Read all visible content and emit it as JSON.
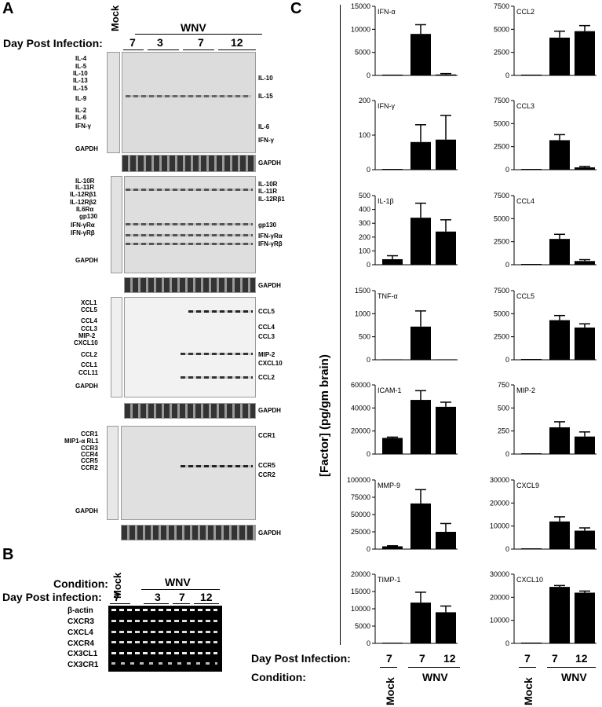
{
  "panels": {
    "a": "A",
    "b": "B",
    "c": "C"
  },
  "panel_a": {
    "mock_label": "Mock",
    "wnv_label": "WNV",
    "dpi_label": "Day Post Infection:",
    "days": [
      "7",
      "3",
      "7",
      "12"
    ],
    "blots": [
      {
        "left_labels": [
          "IL-4",
          "IL-5",
          "IL-10",
          "IL-13",
          "IL-15",
          "IL-9",
          "IL-2",
          "IL-6",
          "IFN-γ",
          "GAPDH"
        ],
        "right_labels": [
          "IL-10",
          "IL-15",
          "IL-6",
          "IFN-γ"
        ],
        "gapdh_label": "GAPDH"
      },
      {
        "left_labels": [
          "IL-10R",
          "IL-11R",
          "IL-12Rβ1",
          "IL-12Rβ2",
          "IL6Rα",
          "gp130",
          "IFN-γRα",
          "IFN-γRβ",
          "GAPDH"
        ],
        "right_labels": [
          "IL-10R",
          "IL-11R",
          "IL-12Rβ1",
          "gp130",
          "IFN-γRα",
          "IFN-γRβ"
        ],
        "gapdh_label": "GAPDH"
      },
      {
        "left_labels": [
          "XCL1",
          "CCL5",
          "CCL4",
          "CCL3",
          "MIP-2",
          "CXCL10",
          "CCL2",
          "CCL1",
          "CCL11",
          "GAPDH"
        ],
        "right_labels": [
          "CCL5",
          "CCL4",
          "CCL3",
          "MIP-2",
          "CXCL10",
          "CCL2"
        ],
        "gapdh_label": "GAPDH"
      },
      {
        "left_labels": [
          "CCR1",
          "MIP1-α RL1",
          "CCR3",
          "CCR4",
          "CCR5",
          "CCR2",
          "GAPDH"
        ],
        "right_labels": [
          "CCR1",
          "CCR5",
          "CCR2"
        ],
        "gapdh_label": "GAPDH"
      }
    ]
  },
  "panel_b": {
    "condition_label": "Condition:",
    "mock_label": "Mock",
    "wnv_label": "WNV",
    "dpi_label": "Day Post infection:",
    "days": [
      "7",
      "3",
      "7",
      "12"
    ],
    "rows": [
      "β-actin",
      "CXCR3",
      "CXCL4",
      "CXCR4",
      "CX3CL1",
      "CX3CR1"
    ]
  },
  "panel_c": {
    "ylabel": "[Factor] (pg/gm brain)",
    "dpi_label": "Day Post Infection:",
    "condition_label": "Condition:",
    "days": [
      "7",
      "7",
      "12"
    ],
    "mock_label": "Mock",
    "wnv_label": "WNV"
  },
  "chart_data": [
    {
      "type": "bar",
      "title": "IFN-α",
      "categories": [
        "Mock 7",
        "WNV 7",
        "WNV 12"
      ],
      "values": [
        0,
        9000,
        200
      ],
      "errors": [
        0,
        2000,
        200
      ],
      "ylim": [
        0,
        15000
      ],
      "yticks": [
        0,
        5000,
        10000,
        15000
      ]
    },
    {
      "type": "bar",
      "title": "IFN-γ",
      "categories": [
        "Mock 7",
        "WNV 7",
        "WNV 12"
      ],
      "values": [
        0,
        80,
        87
      ],
      "errors": [
        0,
        50,
        70
      ],
      "ylim": [
        0,
        200
      ],
      "yticks": [
        0,
        100,
        200
      ]
    },
    {
      "type": "bar",
      "title": "IL-1β",
      "categories": [
        "Mock 7",
        "WNV 7",
        "WNV 12"
      ],
      "values": [
        40,
        340,
        240
      ],
      "errors": [
        25,
        105,
        85
      ],
      "ylim": [
        0,
        500
      ],
      "yticks": [
        0,
        100,
        200,
        300,
        400,
        500
      ]
    },
    {
      "type": "bar",
      "title": "TNF-α",
      "categories": [
        "Mock 7",
        "WNV 7",
        "WNV 12"
      ],
      "values": [
        10,
        720,
        10
      ],
      "errors": [
        0,
        340,
        0
      ],
      "ylim": [
        0,
        1500
      ],
      "yticks": [
        0,
        500,
        1000,
        1500
      ]
    },
    {
      "type": "bar",
      "title": "ICAM-1",
      "categories": [
        "Mock 7",
        "WNV 7",
        "WNV 12"
      ],
      "values": [
        14000,
        47000,
        41000
      ],
      "errors": [
        700,
        8000,
        4000
      ],
      "ylim": [
        0,
        60000
      ],
      "yticks": [
        0,
        20000,
        40000,
        60000
      ]
    },
    {
      "type": "bar",
      "title": "MMP-9",
      "categories": [
        "Mock 7",
        "WNV 7",
        "WNV 12"
      ],
      "values": [
        4000,
        66000,
        25000
      ],
      "errors": [
        800,
        20000,
        12000
      ],
      "ylim": [
        0,
        100000
      ],
      "yticks": [
        0,
        25000,
        50000,
        75000,
        100000
      ]
    },
    {
      "type": "bar",
      "title": "TIMP-1",
      "categories": [
        "Mock 7",
        "WNV 7",
        "WNV 12"
      ],
      "values": [
        200,
        11800,
        9000
      ],
      "errors": [
        0,
        3000,
        1800
      ],
      "ylim": [
        0,
        20000
      ],
      "yticks": [
        0,
        5000,
        10000,
        15000,
        20000
      ]
    },
    {
      "type": "bar",
      "title": "CCL2",
      "categories": [
        "Mock 7",
        "WNV 7",
        "WNV 12"
      ],
      "values": [
        0,
        4100,
        4800
      ],
      "errors": [
        0,
        700,
        600
      ],
      "ylim": [
        0,
        7500
      ],
      "yticks": [
        0,
        2500,
        5000,
        7500
      ]
    },
    {
      "type": "bar",
      "title": "CCL3",
      "categories": [
        "Mock 7",
        "WNV 7",
        "WNV 12"
      ],
      "values": [
        0,
        3200,
        250
      ],
      "errors": [
        0,
        600,
        100
      ],
      "ylim": [
        0,
        7500
      ],
      "yticks": [
        0,
        2500,
        5000,
        7500
      ]
    },
    {
      "type": "bar",
      "title": "CCL4",
      "categories": [
        "Mock 7",
        "WNV 7",
        "WNV 12"
      ],
      "values": [
        0,
        2800,
        400
      ],
      "errors": [
        0,
        500,
        150
      ],
      "ylim": [
        0,
        7500
      ],
      "yticks": [
        0,
        2500,
        5000,
        7500
      ]
    },
    {
      "type": "bar",
      "title": "CCL5",
      "categories": [
        "Mock 7",
        "WNV 7",
        "WNV 12"
      ],
      "values": [
        0,
        4300,
        3500
      ],
      "errors": [
        0,
        500,
        400
      ],
      "ylim": [
        0,
        7500
      ],
      "yticks": [
        0,
        2500,
        5000,
        7500
      ]
    },
    {
      "type": "bar",
      "title": "MIP-2",
      "categories": [
        "Mock 7",
        "WNV 7",
        "WNV 12"
      ],
      "values": [
        0,
        290,
        190
      ],
      "errors": [
        0,
        60,
        50
      ],
      "ylim": [
        0,
        750
      ],
      "yticks": [
        0,
        250,
        500,
        750
      ]
    },
    {
      "type": "bar",
      "title": "CXCL9",
      "categories": [
        "Mock 7",
        "WNV 7",
        "WNV 12"
      ],
      "values": [
        0,
        12000,
        8000
      ],
      "errors": [
        0,
        2000,
        1200
      ],
      "ylim": [
        0,
        30000
      ],
      "yticks": [
        0,
        10000,
        20000,
        30000
      ]
    },
    {
      "type": "bar",
      "title": "CXCL10",
      "categories": [
        "Mock 7",
        "WNV 7",
        "WNV 12"
      ],
      "values": [
        0,
        24500,
        22000
      ],
      "errors": [
        0,
        600,
        700
      ],
      "ylim": [
        0,
        30000
      ],
      "yticks": [
        0,
        10000,
        20000,
        30000
      ]
    }
  ]
}
